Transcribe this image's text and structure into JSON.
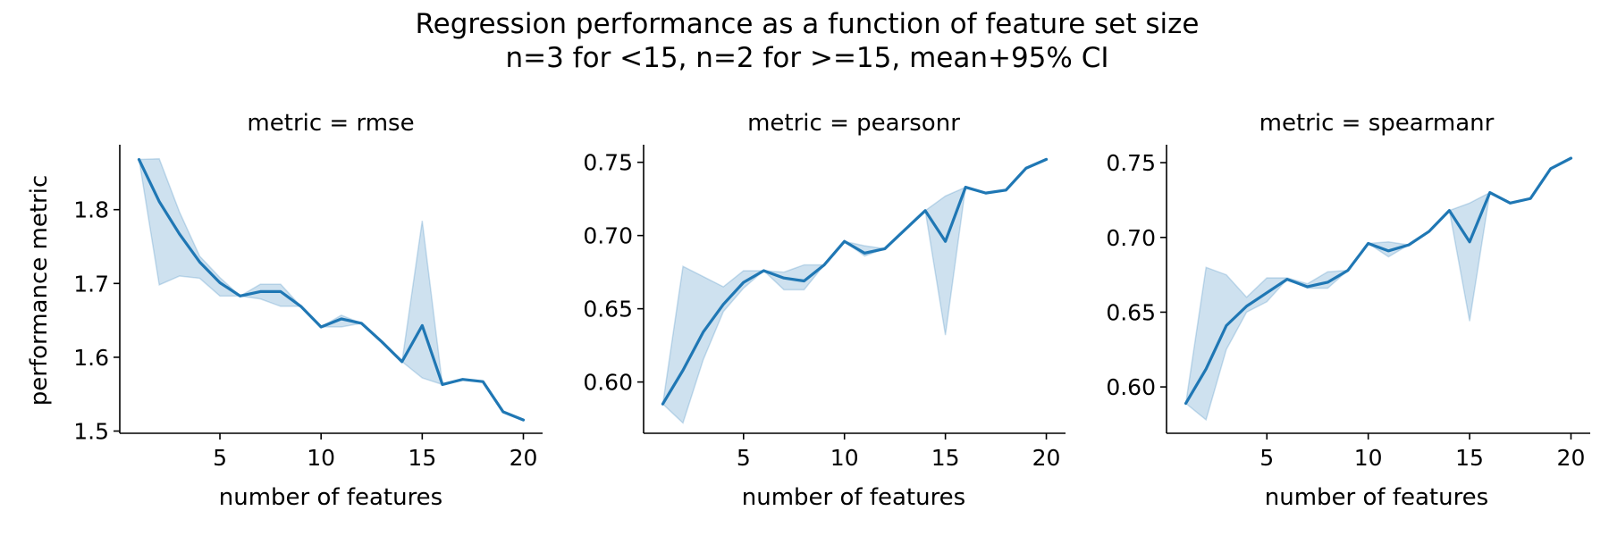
{
  "figure": {
    "title_line1": "Regression performance as a function of feature set size",
    "title_line2": "n=3 for <15, n=2 for >=15, mean+95% CI"
  },
  "colors": {
    "line": "#1f77b4",
    "band": "#1f77b4",
    "axis": "#000000",
    "background": "#ffffff"
  },
  "chart_data": [
    {
      "type": "line",
      "title": "metric = rmse",
      "xlabel": "number of features",
      "ylabel": "performance metric",
      "x_ticks": [
        5,
        10,
        15,
        20
      ],
      "y_ticks": [
        1.5,
        1.6,
        1.7,
        1.8
      ],
      "y_tick_labels": [
        "1.5",
        "1.6",
        "1.7",
        "1.8"
      ],
      "xlim": [
        0.05,
        20.95
      ],
      "ylim": [
        1.497,
        1.888
      ],
      "grid": false,
      "x": [
        1,
        2,
        3,
        4,
        5,
        6,
        7,
        8,
        9,
        10,
        11,
        12,
        13,
        14,
        15,
        16,
        17,
        18,
        19,
        20
      ],
      "mean": [
        1.868,
        1.811,
        1.767,
        1.729,
        1.701,
        1.683,
        1.689,
        1.689,
        1.669,
        1.641,
        1.652,
        1.646,
        1.621,
        1.594,
        1.643,
        1.563,
        1.57,
        1.567,
        1.526,
        1.515
      ],
      "ci_low": [
        1.868,
        1.698,
        1.71,
        1.707,
        1.683,
        1.683,
        1.679,
        1.669,
        1.669,
        1.641,
        1.641,
        1.646,
        1.621,
        1.594,
        1.572,
        1.563,
        1.57,
        1.567,
        1.526,
        1.515
      ],
      "ci_high": [
        1.868,
        1.869,
        1.797,
        1.737,
        1.708,
        1.683,
        1.699,
        1.699,
        1.669,
        1.641,
        1.657,
        1.646,
        1.621,
        1.594,
        1.785,
        1.563,
        1.57,
        1.567,
        1.526,
        1.515
      ]
    },
    {
      "type": "line",
      "title": "metric = pearsonr",
      "xlabel": "number of features",
      "ylabel": "",
      "x_ticks": [
        5,
        10,
        15,
        20
      ],
      "y_ticks": [
        0.6,
        0.65,
        0.7,
        0.75
      ],
      "y_tick_labels": [
        "0.60",
        "0.65",
        "0.70",
        "0.75"
      ],
      "xlim": [
        0.05,
        20.95
      ],
      "ylim": [
        0.565,
        0.762
      ],
      "grid": false,
      "x": [
        1,
        2,
        3,
        4,
        5,
        6,
        7,
        8,
        9,
        10,
        11,
        12,
        13,
        14,
        15,
        16,
        17,
        18,
        19,
        20
      ],
      "mean": [
        0.585,
        0.608,
        0.634,
        0.653,
        0.668,
        0.676,
        0.671,
        0.669,
        0.68,
        0.696,
        0.688,
        0.691,
        0.704,
        0.717,
        0.696,
        0.733,
        0.729,
        0.731,
        0.746,
        0.752
      ],
      "ci_low": [
        0.585,
        0.572,
        0.615,
        0.648,
        0.664,
        0.676,
        0.663,
        0.663,
        0.68,
        0.696,
        0.686,
        0.691,
        0.704,
        0.717,
        0.632,
        0.733,
        0.729,
        0.731,
        0.746,
        0.752
      ],
      "ci_high": [
        0.585,
        0.679,
        0.672,
        0.665,
        0.676,
        0.676,
        0.675,
        0.68,
        0.68,
        0.696,
        0.693,
        0.691,
        0.704,
        0.717,
        0.727,
        0.733,
        0.729,
        0.731,
        0.746,
        0.752
      ]
    },
    {
      "type": "line",
      "title": "metric = spearmanr",
      "xlabel": "number of features",
      "ylabel": "",
      "x_ticks": [
        5,
        10,
        15,
        20
      ],
      "y_ticks": [
        0.6,
        0.65,
        0.7,
        0.75
      ],
      "y_tick_labels": [
        "0.60",
        "0.65",
        "0.70",
        "0.75"
      ],
      "xlim": [
        0.05,
        20.95
      ],
      "ylim": [
        0.569,
        0.762
      ],
      "grid": false,
      "x": [
        1,
        2,
        3,
        4,
        5,
        6,
        7,
        8,
        9,
        10,
        11,
        12,
        13,
        14,
        15,
        16,
        17,
        18,
        19,
        20
      ],
      "mean": [
        0.589,
        0.612,
        0.641,
        0.654,
        0.663,
        0.672,
        0.667,
        0.67,
        0.678,
        0.696,
        0.691,
        0.695,
        0.704,
        0.718,
        0.697,
        0.73,
        0.723,
        0.726,
        0.746,
        0.753
      ],
      "ci_low": [
        0.589,
        0.578,
        0.625,
        0.65,
        0.657,
        0.672,
        0.666,
        0.666,
        0.678,
        0.696,
        0.687,
        0.695,
        0.704,
        0.718,
        0.644,
        0.73,
        0.723,
        0.726,
        0.746,
        0.753
      ],
      "ci_high": [
        0.589,
        0.68,
        0.675,
        0.66,
        0.673,
        0.673,
        0.669,
        0.677,
        0.678,
        0.696,
        0.697,
        0.695,
        0.704,
        0.718,
        0.723,
        0.73,
        0.723,
        0.726,
        0.746,
        0.753
      ]
    }
  ]
}
